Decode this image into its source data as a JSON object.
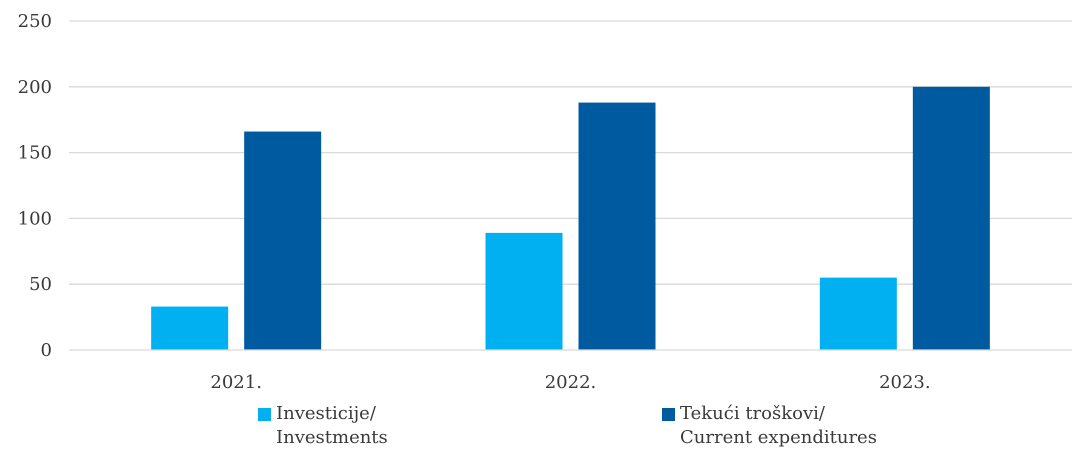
{
  "chart_data": {
    "type": "bar",
    "categories": [
      "2021.",
      "2022.",
      "2023."
    ],
    "series": [
      {
        "name": "Investicije/ Investments",
        "name_lines": [
          "Investicije/",
          "Investments"
        ],
        "color": "#00B0F0",
        "values": [
          33,
          89,
          55
        ]
      },
      {
        "name": "Tekući troškovi/ Current expenditures",
        "name_lines": [
          "Tekući troškovi/",
          "Current expenditures"
        ],
        "color": "#005AA0",
        "values": [
          166,
          188,
          200
        ]
      }
    ],
    "ylim": [
      0,
      250
    ],
    "yticks": [
      0,
      50,
      100,
      150,
      200,
      250
    ],
    "grid": true,
    "gridline_color": "#D9D9D9",
    "legend_position": "bottom",
    "title": "",
    "xlabel": "",
    "ylabel": ""
  }
}
